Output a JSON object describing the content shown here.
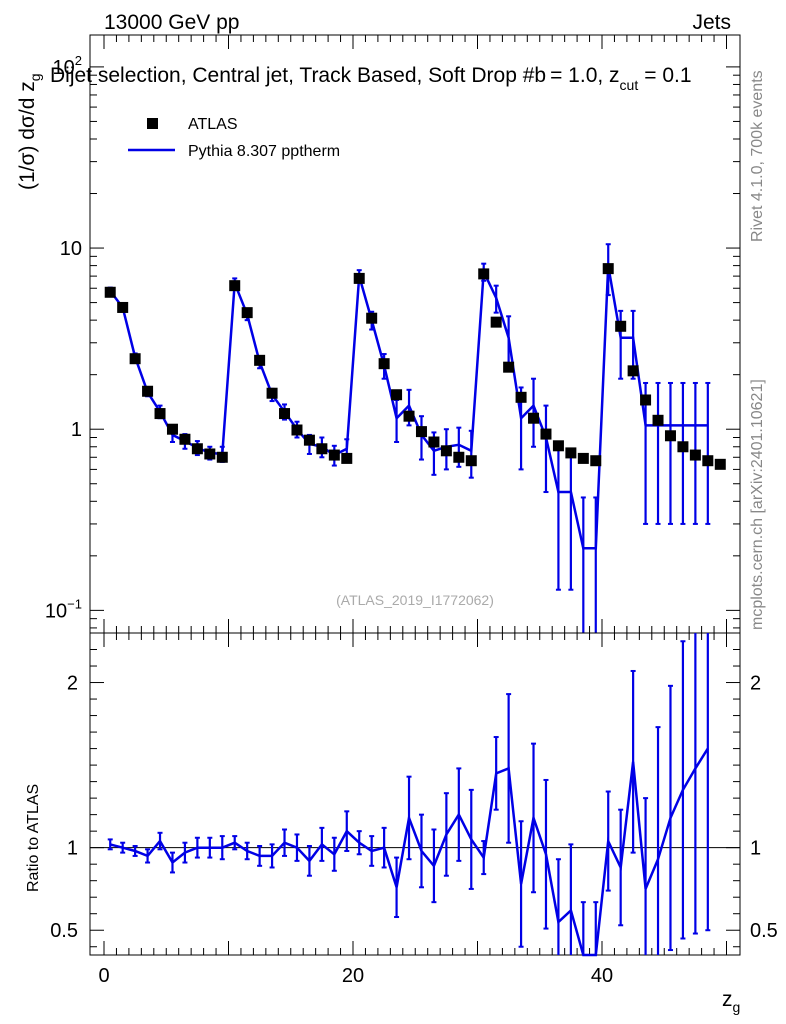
{
  "header": {
    "energy": "13000 GeV pp",
    "category": "Jets",
    "selection_main": "Dijet selection, Central jet, Track Based, Soft Drop #b",
    "selection_beta": "= 1.0, z",
    "selection_cut_sub": "cut",
    "selection_tail": "= 0.1",
    "side_rivet": "Rivet 4.1.0,  700k events",
    "side_mcplots": "mcplots.cern.ch [arXiv:2401.10621]",
    "watermark": "(ATLAS_2019_I1772062)"
  },
  "legend": {
    "data_label": "ATLAS",
    "mc_label": "Pythia 8.307 pptherm"
  },
  "colors": {
    "mc": "#0000e6",
    "data": "#000000"
  },
  "chart_data": [
    {
      "type": "scatter",
      "panel": "main",
      "ylabel": "(1/σ) dσ/d z",
      "ylabel_sub": "g",
      "yscale": "log",
      "xlim": [
        -1,
        51
      ],
      "ylim": [
        0.075,
        150
      ],
      "y_ticks": [
        {
          "value": 0.1,
          "label": "10",
          "sup": "−1"
        },
        {
          "value": 1,
          "label": "1",
          "sup": ""
        },
        {
          "value": 10,
          "label": "10",
          "sup": ""
        },
        {
          "value": 100,
          "label": "10",
          "sup": "2"
        }
      ],
      "series": [
        {
          "name": "ATLAS",
          "style": "markers",
          "x": [
            0.5,
            1.5,
            2.5,
            3.5,
            4.5,
            5.5,
            6.5,
            7.5,
            8.5,
            9.5,
            10.5,
            11.5,
            12.5,
            13.5,
            14.5,
            15.5,
            16.5,
            17.5,
            18.5,
            19.5,
            20.5,
            21.5,
            22.5,
            23.5,
            24.5,
            25.5,
            26.5,
            27.5,
            28.5,
            29.5,
            30.5,
            31.5,
            32.5,
            33.5,
            34.5,
            35.5,
            36.5,
            37.5,
            38.5,
            39.5,
            40.5,
            41.5,
            42.5,
            43.5,
            44.5,
            45.5,
            46.5,
            47.5,
            48.5,
            49.5
          ],
          "y": [
            5.7,
            4.7,
            2.45,
            1.62,
            1.22,
            1.0,
            0.88,
            0.78,
            0.73,
            0.7,
            6.2,
            4.4,
            2.4,
            1.58,
            1.22,
            0.99,
            0.87,
            0.78,
            0.72,
            0.69,
            6.8,
            4.1,
            2.3,
            1.55,
            1.18,
            0.97,
            0.85,
            0.76,
            0.7,
            0.67,
            7.2,
            3.9,
            2.2,
            1.5,
            1.15,
            0.94,
            0.81,
            0.74,
            0.69,
            0.67,
            7.7,
            3.7,
            2.1,
            1.45,
            1.12,
            0.92,
            0.8,
            0.72,
            0.67,
            0.64
          ]
        },
        {
          "name": "Pythia 8.307 pptherm",
          "style": "histogram-with-errors",
          "x": [
            0.5,
            1.5,
            2.5,
            3.5,
            4.5,
            5.5,
            6.5,
            7.5,
            8.5,
            9.5,
            10.5,
            11.5,
            12.5,
            13.5,
            14.5,
            15.5,
            16.5,
            17.5,
            18.5,
            19.5,
            20.5,
            21.5,
            22.5,
            23.5,
            24.5,
            25.5,
            26.5,
            27.5,
            28.5,
            29.5,
            30.5,
            31.5,
            32.5,
            33.5,
            34.5,
            35.5,
            36.5,
            37.5,
            38.5,
            39.5,
            40.5,
            41.5,
            42.5,
            43.5,
            44.5,
            45.5,
            46.5,
            47.5,
            48.5
          ],
          "y": [
            5.8,
            4.7,
            2.5,
            1.6,
            1.25,
            0.93,
            0.86,
            0.79,
            0.74,
            0.73,
            6.4,
            4.3,
            2.35,
            1.55,
            1.25,
            1.0,
            0.83,
            0.8,
            0.72,
            0.78,
            7.0,
            4.0,
            2.25,
            1.15,
            1.35,
            0.93,
            0.76,
            0.8,
            0.82,
            0.76,
            7.4,
            5.3,
            3.2,
            1.15,
            1.35,
            0.9,
            0.45,
            0.45,
            0.22,
            0.22,
            8.0,
            3.2,
            3.2,
            1.05,
            1.05,
            1.05,
            1.05,
            1.05,
            1.05
          ],
          "yerr": [
            0.25,
            0.2,
            0.12,
            0.08,
            0.1,
            0.08,
            0.08,
            0.07,
            0.06,
            0.07,
            0.4,
            0.3,
            0.18,
            0.12,
            0.12,
            0.1,
            0.1,
            0.1,
            0.09,
            0.1,
            0.55,
            0.45,
            0.35,
            0.3,
            0.3,
            0.25,
            0.2,
            0.2,
            0.2,
            0.22,
            0.8,
            0.9,
            1.0,
            0.55,
            0.55,
            0.45,
            0.32,
            0.32,
            0.2,
            0.2,
            2.5,
            1.3,
            1.3,
            0.75,
            0.75,
            0.75,
            0.75,
            0.75,
            0.75
          ]
        }
      ]
    },
    {
      "type": "line",
      "panel": "ratio",
      "ylabel": "Ratio to ATLAS",
      "xlabel": "z",
      "xlabel_sub": "g",
      "xlim": [
        -1,
        51
      ],
      "ylim": [
        0.35,
        2.3
      ],
      "reference_line": 1,
      "x_ticks": [
        0,
        20,
        40
      ],
      "y_ticks": [
        0.5,
        1,
        2
      ],
      "series": [
        {
          "name": "Pythia 8.307 pptherm / ATLAS",
          "x": [
            0.5,
            1.5,
            2.5,
            3.5,
            4.5,
            5.5,
            6.5,
            7.5,
            8.5,
            9.5,
            10.5,
            11.5,
            12.5,
            13.5,
            14.5,
            15.5,
            16.5,
            17.5,
            18.5,
            19.5,
            20.5,
            21.5,
            22.5,
            23.5,
            24.5,
            25.5,
            26.5,
            27.5,
            28.5,
            29.5,
            30.5,
            31.5,
            32.5,
            33.5,
            34.5,
            35.5,
            36.5,
            37.5,
            38.5,
            39.5,
            40.5,
            41.5,
            42.5,
            43.5,
            44.5,
            45.5,
            46.5,
            47.5,
            48.5
          ],
          "y": [
            1.02,
            1.0,
            0.98,
            0.95,
            1.04,
            0.91,
            0.97,
            1.0,
            1.0,
            1.0,
            1.03,
            0.98,
            0.95,
            0.95,
            1.03,
            1.0,
            0.92,
            1.02,
            0.96,
            1.1,
            1.03,
            0.98,
            1.0,
            0.76,
            1.18,
            0.98,
            0.89,
            1.08,
            1.2,
            1.05,
            0.94,
            1.45,
            1.48,
            0.78,
            1.18,
            0.96,
            0.55,
            0.62,
            0.32,
            0.32,
            1.04,
            0.88,
            1.52,
            0.75,
            0.93,
            1.18,
            1.35,
            1.48,
            1.6
          ],
          "yerr": [
            0.03,
            0.03,
            0.03,
            0.04,
            0.05,
            0.06,
            0.06,
            0.06,
            0.06,
            0.07,
            0.04,
            0.05,
            0.06,
            0.07,
            0.08,
            0.08,
            0.09,
            0.1,
            0.1,
            0.12,
            0.07,
            0.09,
            0.12,
            0.18,
            0.25,
            0.22,
            0.22,
            0.25,
            0.28,
            0.3,
            0.1,
            0.22,
            0.45,
            0.38,
            0.45,
            0.45,
            0.38,
            0.4,
            0.35,
            0.35,
            0.3,
            0.35,
            0.55,
            0.55,
            0.8,
            0.8,
            0.9,
            1.0,
            1.1
          ]
        }
      ]
    }
  ]
}
